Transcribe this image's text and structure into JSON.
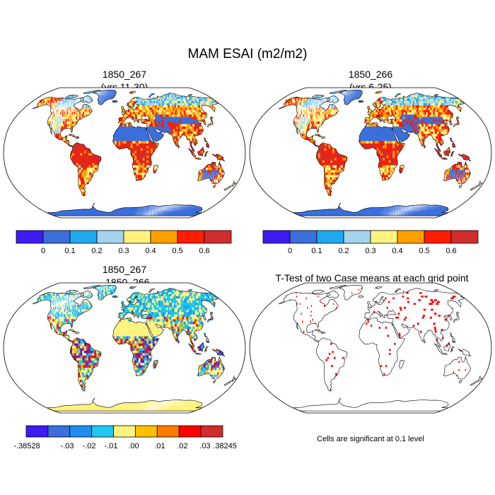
{
  "title": "MAM ESAI (m2/m2)",
  "panels": [
    {
      "id": "p1",
      "title_line1": "1850_267",
      "title_line2": "(yrs 11-30)",
      "field": "esai"
    },
    {
      "id": "p2",
      "title_line1": "1850_266",
      "title_line2": "(yrs 6-25)",
      "field": "esai"
    },
    {
      "id": "p3",
      "title_line1": "1850_267",
      "title_line2": "- 1850_266",
      "field": "diff"
    },
    {
      "id": "p4",
      "title_line1": "T-Test of two Case means at each grid point",
      "title_line2": "",
      "field": "ttest"
    }
  ],
  "colorbar_top": {
    "colors": [
      "#3c1cf0",
      "#3a6fdc",
      "#1ea8f0",
      "#a4d3ee",
      "#fff380",
      "#ffa000",
      "#ff1c00",
      "#d12c2c"
    ],
    "labels": [
      "0",
      "0.1",
      "0.2",
      "0.3",
      "0.4",
      "0.5",
      "0.6"
    ]
  },
  "colorbar_diff": {
    "colors": [
      "#3c1cf0",
      "#3a6fdc",
      "#1e8ff0",
      "#1ec8f0",
      "#fff380",
      "#ffc000",
      "#ff7a00",
      "#ff0000",
      "#d12c2c"
    ],
    "labels": [
      "-.38528",
      "-.03",
      "-.02",
      "-.01",
      ".00",
      ".01",
      ".02",
      ".03",
      ".38245"
    ]
  },
  "ttest_note": "Cells are significant at 0.1 level",
  "colors": {
    "ocean": "#ffffff",
    "outline": "#000000",
    "significant": "#ff0000"
  }
}
